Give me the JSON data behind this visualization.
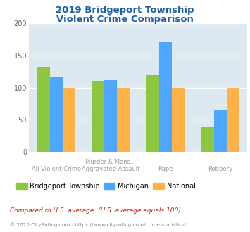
{
  "title_line1": "2019 Bridgeport Township",
  "title_line2": "Violent Crime Comparison",
  "title_color": "#1e5fa8",
  "cat_labels_row1": [
    "",
    "Murder & Mans...",
    "",
    ""
  ],
  "cat_labels_row2": [
    "All Violent Crime",
    "Aggravated Assault",
    "Rape",
    "Robbery"
  ],
  "series": {
    "Bridgeport Township": [
      132,
      110,
      120,
      38
    ],
    "Michigan": [
      116,
      112,
      171,
      65
    ],
    "National": [
      100,
      100,
      100,
      100
    ]
  },
  "colors": {
    "Bridgeport Township": "#8dc63f",
    "Michigan": "#4da6ff",
    "National": "#ffb347"
  },
  "ylim": [
    0,
    200
  ],
  "yticks": [
    0,
    50,
    100,
    150,
    200
  ],
  "plot_bg_color": "#dde9f0",
  "grid_color": "#ffffff",
  "footnote1": "Compared to U.S. average. (U.S. average equals 100)",
  "footnote2": "© 2025 CityRating.com - https://www.cityrating.com/crime-statistics/",
  "footnote1_color": "#cc2200",
  "footnote2_color": "#888888",
  "bar_width": 0.23
}
